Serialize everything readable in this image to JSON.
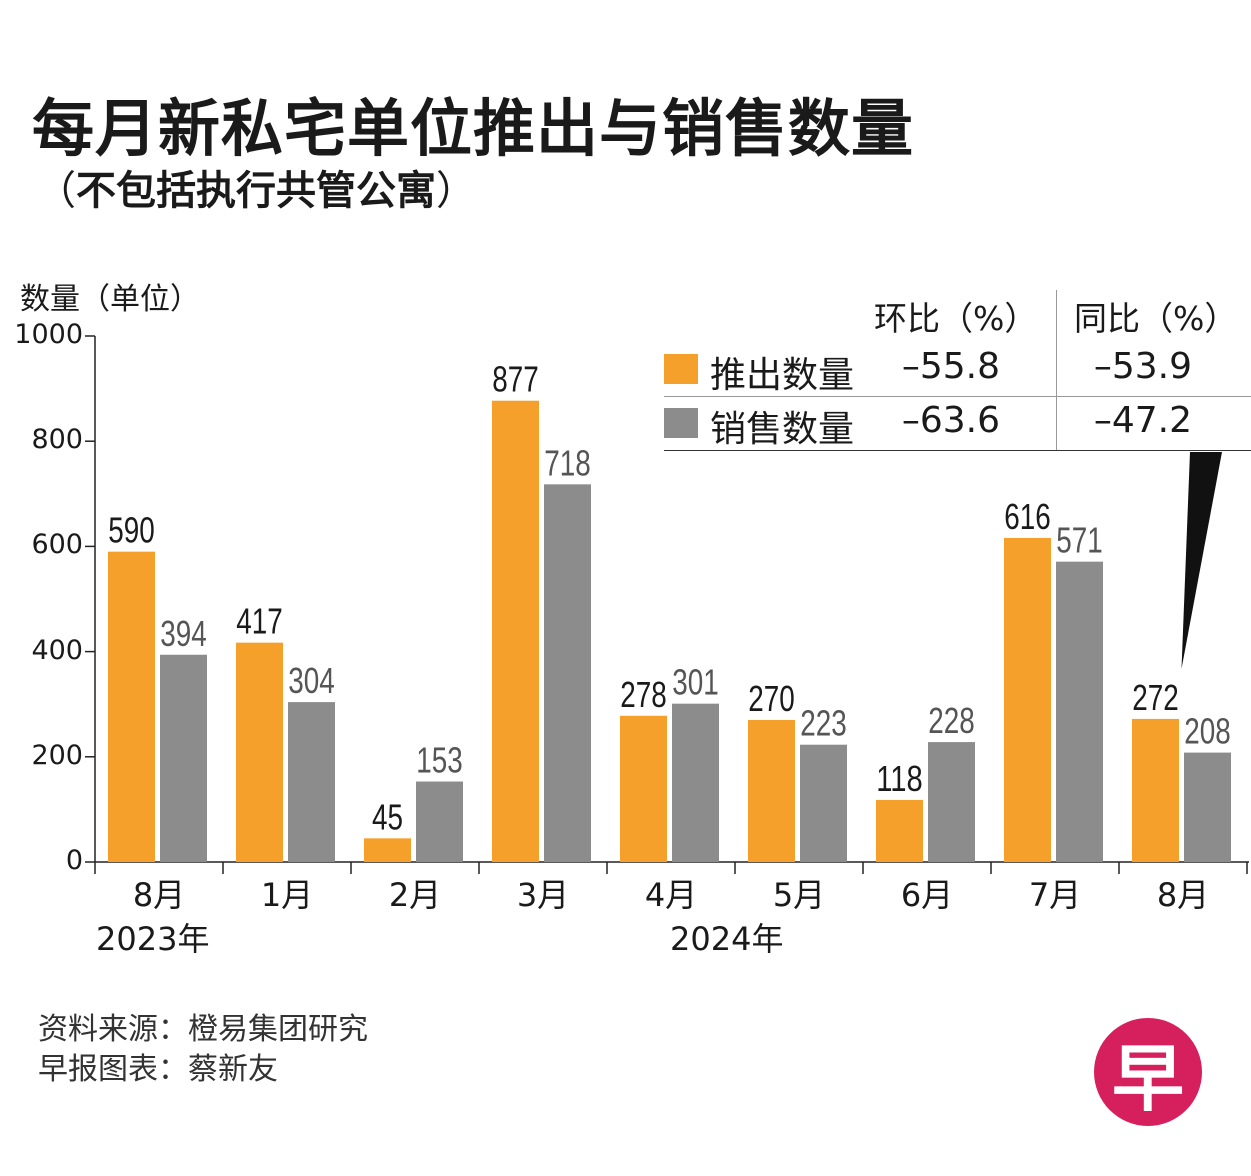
{
  "title": "每月新私宅单位推出与销售数量",
  "subtitle": "不包括执行共管公寓",
  "subtitle_open": "（",
  "subtitle_close": "）",
  "colors": {
    "launched": "#F5A02A",
    "sold": "#8C8C8C",
    "axis": "#222222",
    "logo": "#D6205D"
  },
  "chart_data": {
    "type": "bar",
    "title": "每月新私宅单位推出与销售数量",
    "subtitle": "（不包括执行共管公寓）",
    "ylabel": "数量（单位）",
    "xlabel": "",
    "ylim": [
      0,
      1000
    ],
    "yticks": [
      "0",
      "200",
      "400",
      "600",
      "800",
      "1000"
    ],
    "categories": [
      "8月",
      "1月",
      "2月",
      "3月",
      "4月",
      "5月",
      "6月",
      "7月",
      "8月"
    ],
    "year_labels": [
      "2023年",
      "2024年"
    ],
    "series": [
      {
        "name": "推出数量",
        "values": [
          590,
          417,
          45,
          877,
          278,
          270,
          118,
          616,
          272
        ]
      },
      {
        "name": "销售数量",
        "values": [
          394,
          304,
          153,
          718,
          301,
          223,
          228,
          571,
          208
        ]
      }
    ]
  },
  "legend": {
    "col_mom": "环比（%）",
    "col_yoy": "同比（%）",
    "rows": [
      {
        "name": "推出数量",
        "mom": "–55.8",
        "yoy": "–53.9"
      },
      {
        "name": "销售数量",
        "mom": "–63.6",
        "yoy": "–47.2"
      }
    ]
  },
  "source": "资料来源：橙易集团研究",
  "credit": "早报图表：蔡新友",
  "logo": {
    "glyph": "早"
  }
}
